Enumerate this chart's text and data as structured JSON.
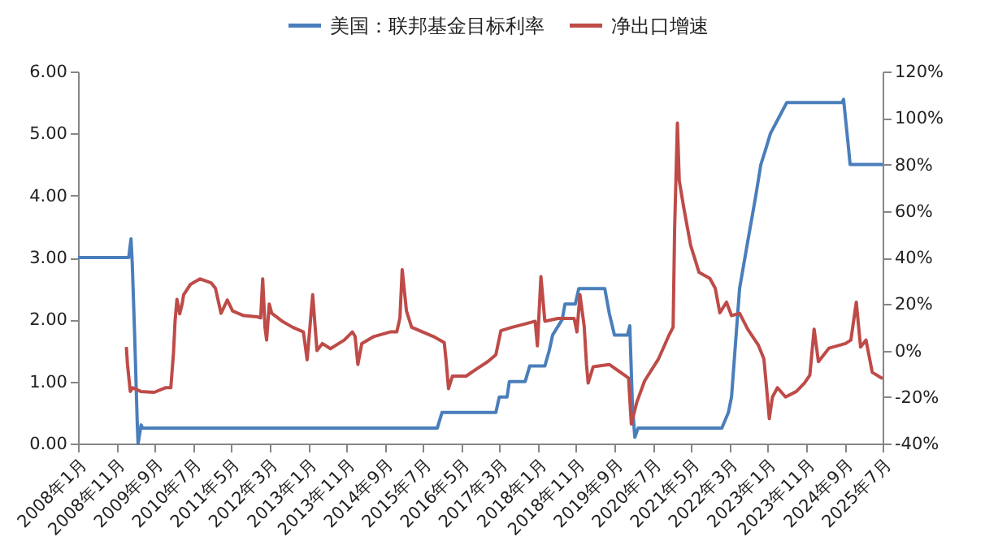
{
  "chart_data": {
    "type": "line",
    "legend": "top",
    "line_style": "solid",
    "xlim": [
      "2008-01",
      "2025-07"
    ],
    "xticks": [
      {
        "value": "2008-01",
        "label": "2008年1月"
      },
      {
        "value": "2008-11",
        "label": "2008年11月"
      },
      {
        "value": "2009-09",
        "label": "2009年9月"
      },
      {
        "value": "2010-07",
        "label": "2010年7月"
      },
      {
        "value": "2011-05",
        "label": "2011年5月"
      },
      {
        "value": "2012-03",
        "label": "2012年3月"
      },
      {
        "value": "2013-01",
        "label": "2013年1月"
      },
      {
        "value": "2013-11",
        "label": "2013年11月"
      },
      {
        "value": "2014-09",
        "label": "2014年9月"
      },
      {
        "value": "2015-07",
        "label": "2015年7月"
      },
      {
        "value": "2016-05",
        "label": "2016年5月"
      },
      {
        "value": "2017-03",
        "label": "2017年3月"
      },
      {
        "value": "2018-01",
        "label": "2018年1月"
      },
      {
        "value": "2018-11",
        "label": "2018年11月"
      },
      {
        "value": "2019-09",
        "label": "2019年9月"
      },
      {
        "value": "2020-07",
        "label": "2020年7月"
      },
      {
        "value": "2021-05",
        "label": "2021年5月"
      },
      {
        "value": "2022-03",
        "label": "2022年3月"
      },
      {
        "value": "2023-01",
        "label": "2023年1月"
      },
      {
        "value": "2023-11",
        "label": "2023年11月"
      },
      {
        "value": "2024-09",
        "label": "2024年9月"
      },
      {
        "value": "2025-07",
        "label": "2025年7月"
      }
    ],
    "ylim": [
      0,
      6
    ],
    "yticks": [
      {
        "value": 0,
        "label": "0.00"
      },
      {
        "value": 1,
        "label": "1.00"
      },
      {
        "value": 2,
        "label": "2.00"
      },
      {
        "value": 3,
        "label": "3.00"
      },
      {
        "value": 4,
        "label": "4.00"
      },
      {
        "value": 5,
        "label": "5.00"
      },
      {
        "value": 6,
        "label": "6.00"
      }
    ],
    "y2lim": [
      -40,
      120
    ],
    "y2ticks": [
      {
        "value": -40,
        "label": "-40%"
      },
      {
        "value": -20,
        "label": "-20%"
      },
      {
        "value": 0,
        "label": "0%"
      },
      {
        "value": 20,
        "label": "20%"
      },
      {
        "value": 40,
        "label": "40%"
      },
      {
        "value": 60,
        "label": "60%"
      },
      {
        "value": 80,
        "label": "80%"
      },
      {
        "value": 100,
        "label": "100%"
      },
      {
        "value": 120,
        "label": "120%"
      }
    ],
    "series": [
      {
        "name": "美国：联邦基金目标利率",
        "color": "#4a7ebb",
        "x": [
          "2008-01-01",
          "2009-02-07",
          "2009-02-25",
          "2009-03-07",
          "2009-03-25",
          "2009-04-16",
          "2009-04-22",
          "2009-05-16",
          "2009-05-28",
          "2015-10-25",
          "2015-12-01",
          "2017-02-01",
          "2017-02-28",
          "2017-05-01",
          "2017-05-19",
          "2017-09-22",
          "2017-10-28",
          "2018-02-25",
          "2018-04-01",
          "2018-04-28",
          "2018-07-13",
          "2018-08-04",
          "2018-10-25",
          "2018-11-22",
          "2019-06-16",
          "2019-07-22",
          "2019-09-01",
          "2019-12-13",
          "2020-01-01",
          "2020-01-22",
          "2020-02-10",
          "2020-03-07",
          "2022-01-01",
          "2022-02-22",
          "2022-03-19",
          "2022-04-19",
          "2022-05-22",
          "2022-07-25",
          "2022-09-28",
          "2022-11-07",
          "2022-12-16",
          "2023-01-22",
          "2023-03-28",
          "2023-06-01",
          "2024-08-13",
          "2024-08-25",
          "2024-10-04",
          "2024-10-16",
          "2025-07-01"
        ],
        "values": [
          3.0,
          3.0,
          3.3,
          2.9,
          1.8,
          0.3,
          0.0,
          0.3,
          0.25,
          0.25,
          0.5,
          0.5,
          0.75,
          0.75,
          1.0,
          1.0,
          1.25,
          1.25,
          1.5,
          1.75,
          2.0,
          2.25,
          2.25,
          2.5,
          2.5,
          2.1,
          1.75,
          1.75,
          1.9,
          0.6,
          0.1,
          0.25,
          0.25,
          0.5,
          0.75,
          1.6,
          2.5,
          3.25,
          4.0,
          4.5,
          4.75,
          5.0,
          5.25,
          5.5,
          5.5,
          5.55,
          4.75,
          4.5,
          4.5
        ]
      },
      {
        "name": "净出口增速",
        "color": "#be4b48",
        "axis": "y2",
        "x": [
          "2009-01-19",
          "2009-01-28",
          "2009-02-19",
          "2009-03-10",
          "2009-05-13",
          "2009-08-28",
          "2009-11-25",
          "2010-01-07",
          "2010-01-28",
          "2010-02-10",
          "2010-02-25",
          "2010-03-19",
          "2010-04-07",
          "2010-04-19",
          "2010-06-13",
          "2010-08-28",
          "2010-11-25",
          "2010-12-28",
          "2011-02-10",
          "2011-04-01",
          "2011-05-13",
          "2011-08-10",
          "2011-11-25",
          "2011-12-22",
          "2012-01-07",
          "2012-01-25",
          "2012-02-07",
          "2012-02-28",
          "2012-03-19",
          "2012-06-07",
          "2012-09-01",
          "2012-11-25",
          "2012-12-25",
          "2013-02-07",
          "2013-03-13",
          "2013-04-25",
          "2013-06-28",
          "2013-10-16",
          "2013-12-19",
          "2014-01-10",
          "2014-02-01",
          "2014-03-04",
          "2014-06-07",
          "2014-10-16",
          "2014-12-07",
          "2015-01-01",
          "2015-01-19",
          "2015-02-22",
          "2015-04-04",
          "2015-09-25",
          "2015-12-19",
          "2016-01-04",
          "2016-01-22",
          "2016-02-22",
          "2016-06-10",
          "2016-09-04",
          "2016-11-28",
          "2017-02-01",
          "2017-03-13",
          "2017-06-10",
          "2017-09-25",
          "2017-12-10",
          "2017-12-28",
          "2018-01-25",
          "2018-02-25",
          "2018-06-10",
          "2018-10-16",
          "2018-11-07",
          "2018-12-01",
          "2019-01-04",
          "2019-01-22",
          "2019-02-04",
          "2019-03-16",
          "2019-07-22",
          "2019-12-22",
          "2020-01-13",
          "2020-02-25",
          "2020-04-28",
          "2020-08-16",
          "2020-11-10",
          "2020-12-10",
          "2020-12-22",
          "2021-01-13",
          "2021-01-28",
          "2021-03-04",
          "2021-04-28",
          "2021-07-04",
          "2021-09-28",
          "2021-11-10",
          "2021-12-16",
          "2022-02-07",
          "2022-03-19",
          "2022-05-22",
          "2022-07-25",
          "2022-10-19",
          "2022-12-01",
          "2022-12-25",
          "2023-01-13",
          "2023-02-07",
          "2023-03-19",
          "2023-05-22",
          "2023-08-16",
          "2023-10-19",
          "2023-12-01",
          "2024-01-04",
          "2024-02-07",
          "2024-05-01",
          "2024-09-10",
          "2024-10-22",
          "2024-12-04",
          "2025-01-07",
          "2025-02-19",
          "2025-04-10",
          "2025-06-16",
          "2025-07-01"
        ],
        "values": [
          1.5,
          -6,
          -17.6,
          -16,
          -17.6,
          -18,
          -16,
          -16,
          -1.3,
          12.7,
          22,
          15.8,
          20,
          24,
          28.5,
          30.8,
          29,
          26.7,
          16,
          21.7,
          17,
          15,
          14.5,
          14,
          30.8,
          10,
          4.5,
          20,
          16,
          12.7,
          10,
          8,
          -4,
          24,
          0,
          3,
          0.8,
          4.5,
          8,
          6,
          -6,
          3,
          6,
          8,
          8,
          14,
          34.8,
          17,
          10,
          6,
          3.4,
          -5,
          -16.4,
          -11,
          -11,
          -7.8,
          -4.8,
          -1.8,
          8.5,
          10,
          11.5,
          12.6,
          2,
          31.8,
          12.6,
          13.8,
          13.8,
          8,
          24,
          10.3,
          -6,
          -14,
          -7,
          -6,
          -11.8,
          -31.6,
          -22.3,
          -13,
          -3.6,
          6.9,
          10,
          52.3,
          97.8,
          73,
          61.6,
          45.3,
          33.6,
          31,
          26.7,
          16.2,
          20.8,
          15,
          16,
          9.2,
          2.2,
          -3.6,
          -17.6,
          -29.3,
          -20,
          -16,
          -20,
          -17.6,
          -14,
          -10.6,
          9.2,
          -4.8,
          1,
          3,
          4.5,
          20.8,
          1.5,
          4.5,
          -9.4,
          -11.6,
          -12
        ]
      }
    ]
  }
}
